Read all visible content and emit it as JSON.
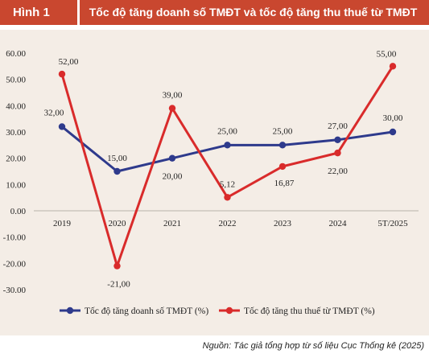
{
  "header": {
    "figure_label": "Hình 1",
    "title": "Tốc độ tăng doanh số TMĐT và tốc độ tăng thu thuế từ TMĐT"
  },
  "source": "Nguồn: Tác giả tổng hợp từ số liệu Cục Thống kê (2025)",
  "colors": {
    "header_bg": "#c9472f",
    "panel_bg": "#f4ede6",
    "series_blue": "#2e3a8c",
    "series_red": "#d92b2b"
  },
  "chart_data": {
    "type": "line",
    "categories": [
      "2019",
      "2020",
      "2021",
      "2022",
      "2023",
      "2024",
      "5T/2025"
    ],
    "ylim": [
      -30,
      60
    ],
    "yticks": [
      "60.00",
      "50.00",
      "40.00",
      "30.00",
      "20.00",
      "10.00",
      "0.00",
      "-10.00",
      "-20.00",
      "-30.00"
    ],
    "ytick_values": [
      60,
      50,
      40,
      30,
      20,
      10,
      0,
      -10,
      -20,
      -30
    ],
    "grid": false,
    "legend_position": "bottom",
    "series": [
      {
        "name": "Tốc độ tăng doanh số TMĐT (%)",
        "color": "#2e3a8c",
        "values": [
          32,
          15,
          20,
          25,
          25,
          27,
          30
        ],
        "labels": [
          "32,00",
          "15,00",
          "20,00",
          "25,00",
          "25,00",
          "27,00",
          "30,00"
        ]
      },
      {
        "name": "Tốc độ tăng thu thuế từ TMĐT (%)",
        "color": "#d92b2b",
        "values": [
          52,
          -21,
          39,
          5.12,
          16.87,
          22,
          55
        ],
        "labels": [
          "52,00",
          "-21,00",
          "39,00",
          "5,12",
          "16,87",
          "22,00",
          "55,00"
        ]
      }
    ]
  }
}
